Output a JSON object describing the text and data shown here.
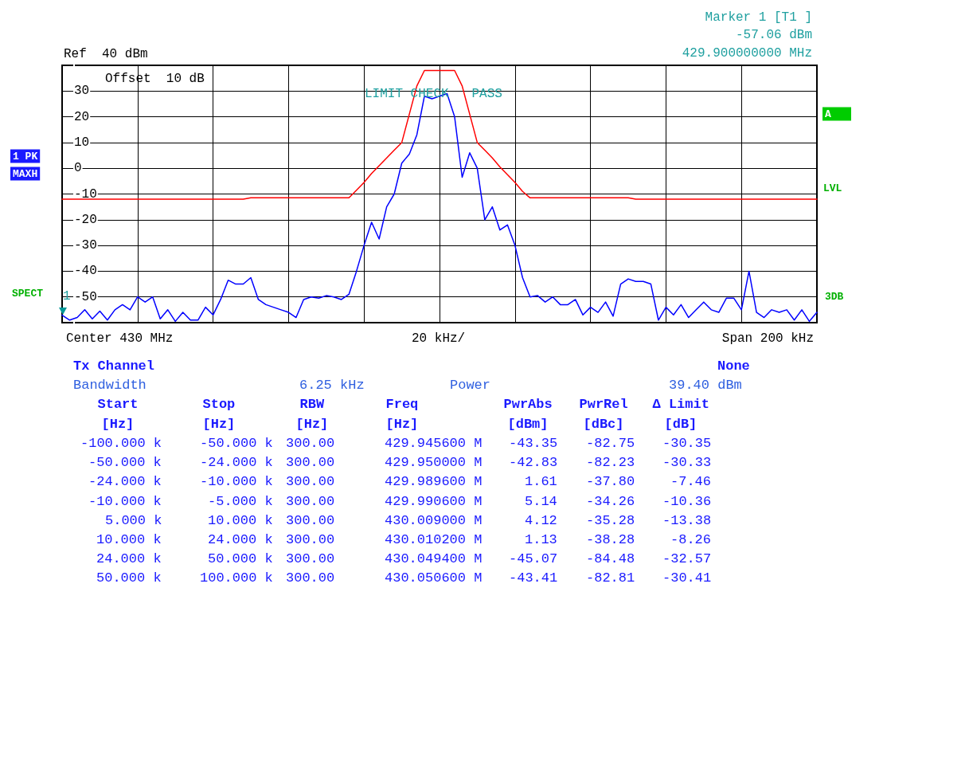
{
  "chart_data": [
    {
      "type": "line",
      "categories": [
        null,
        null,
        null,
        null,
        null,
        null,
        null,
        null,
        null,
        null,
        null,
        null,
        null,
        null,
        null,
        null,
        null,
        null,
        null,
        null,
        null,
        null,
        null,
        null,
        null,
        null,
        null,
        null,
        null,
        null,
        null,
        null,
        null,
        null,
        null,
        null,
        null,
        null,
        null,
        null,
        null,
        null,
        null,
        null,
        null,
        null,
        null,
        null,
        null,
        null,
        null,
        null,
        null,
        null,
        null,
        null,
        null,
        null,
        null,
        null,
        null,
        null,
        null,
        null,
        null,
        null,
        null,
        null,
        null,
        null,
        null,
        null,
        null,
        null,
        null,
        null,
        null,
        null,
        null,
        null,
        null,
        null,
        null,
        null,
        null,
        null,
        null,
        null,
        null,
        null,
        null,
        null,
        null,
        null,
        null,
        null,
        null,
        null,
        null,
        null,
        null
      ],
      "ylim": [
        -60,
        40
      ],
      "yticks": [
        {
          "value": -60,
          "label": null
        },
        -50,
        -40,
        -30,
        -20,
        -10,
        0,
        10,
        20,
        30,
        {
          "value": 40,
          "label": null
        }
      ],
      "grid": true,
      "marker": "none",
      "line_style": "solid",
      "series": [
        {
          "color": "#0000ff",
          "values": [
            -57.06,
            -59,
            -58,
            -55,
            -58.5,
            -55.5,
            -59,
            -55,
            -53,
            -55,
            -50,
            -52,
            -50,
            -58.5,
            -55,
            -59.5,
            -56,
            -59,
            -59,
            -54,
            -57,
            -51,
            -43.5,
            -45,
            -45,
            -42.5,
            -51,
            -53,
            -54,
            -55,
            -56,
            -58,
            -51,
            -50,
            -50.5,
            -49.5,
            -50,
            -51,
            -49,
            -40,
            -30,
            -21,
            -27.5,
            -15,
            -10,
            2,
            5.5,
            13,
            28,
            27,
            28,
            29,
            20,
            -3.5,
            6,
            0,
            -20,
            -15,
            -24,
            -22,
            -30,
            -42.5,
            -50,
            -49.5,
            -52,
            -50,
            -53,
            -53,
            -51,
            -57,
            -54,
            -56,
            -52,
            -57.5,
            -45,
            -43,
            -44,
            -44,
            -45,
            -59,
            -54,
            -57,
            -53,
            -58,
            -55,
            -52,
            -55,
            -56,
            -50.5,
            -50.5,
            -55,
            -40,
            -56,
            -58,
            -55,
            -56,
            -55,
            -59,
            -55,
            -59.5,
            -56
          ]
        },
        {
          "color": "#ff0000",
          "values": [
            -12,
            -12,
            -12,
            -12,
            -12,
            -12,
            -12,
            -12,
            -12,
            -12,
            -12,
            -12,
            -12,
            -12,
            -12,
            -12,
            -12,
            -12,
            -12,
            -12,
            -12,
            -12,
            -12,
            -12,
            -12,
            -11.5,
            -11.5,
            -11.5,
            -11.5,
            -11.5,
            -11.5,
            -11.5,
            -11.5,
            -11.5,
            -11.5,
            -11.5,
            -11.5,
            -11.5,
            -11.5,
            -8.5,
            -5.5,
            -2,
            1,
            4,
            7,
            10,
            21,
            32,
            38,
            38,
            38,
            38,
            38,
            32,
            21,
            10,
            7,
            4,
            0.5,
            -2.5,
            -5.5,
            -9,
            -11.5,
            -11.5,
            -11.5,
            -11.5,
            -11.5,
            -11.5,
            -11.5,
            -11.5,
            -11.5,
            -11.5,
            -11.5,
            -11.5,
            -11.5,
            -11.5,
            -12,
            -12,
            -12,
            -12,
            -12,
            -12,
            -12,
            -12,
            -12,
            -12,
            -12,
            -12,
            -12,
            -12,
            -12,
            -12,
            -12,
            -12,
            -12,
            -12,
            -12,
            -12,
            -12,
            -12,
            -12
          ]
        }
      ],
      "annotations": [
        "Ref  40 dBm",
        "Offset  10 dB",
        "LIMIT CHECK   PASS",
        "Marker 1 [T1 ]",
        "-57.06 dBm",
        "429.900000000 MHz",
        "1 PK",
        "MAXH",
        "A",
        "LVL",
        "SPECT",
        "3DB",
        "Center 430 MHz",
        "20 kHz/",
        "Span 200 kHz",
        {
          "text": "1",
          "y": -57.06
        }
      ]
    },
    {
      "type": "other",
      "annotations": [
        "Tx Channel",
        "None",
        "Bandwidth",
        "6.25 kHz",
        "Power",
        "39.40 dBm",
        "Start",
        "Stop",
        "RBW",
        "Freq",
        "PwrAbs",
        "PwrRel",
        "Δ Limit",
        "[Hz]",
        "[Hz]",
        "[Hz]",
        "[Hz]",
        "[dBm]",
        "[dBc]",
        "[dB]",
        "-100.000 k",
        "-50.000 k",
        "300.00",
        "429.945600 M",
        "-43.35",
        "-82.75",
        "-30.35",
        "-50.000 k",
        "-24.000 k",
        "300.00",
        "429.950000 M",
        "-42.83",
        "-82.23",
        "-30.33",
        "-24.000 k",
        "-10.000 k",
        "300.00",
        "429.989600 M",
        "1.61",
        "-37.80",
        "-7.46",
        "-10.000 k",
        "-5.000 k",
        "300.00",
        "429.990600 M",
        "5.14",
        "-34.26",
        "-10.36",
        "5.000 k",
        "10.000 k",
        "300.00",
        "430.009000 M",
        "4.12",
        "-35.28",
        "-13.38",
        "10.000 k",
        "24.000 k",
        "300.00",
        "430.010200 M",
        "1.13",
        "-38.28",
        "-8.26",
        "24.000 k",
        "50.000 k",
        "300.00",
        "430.049400 M",
        "-45.07",
        "-84.48",
        "-32.57",
        "50.000 k",
        "100.000 k",
        "300.00",
        "430.050600 M",
        "-43.41",
        "-82.81",
        "-30.41"
      ]
    }
  ]
}
